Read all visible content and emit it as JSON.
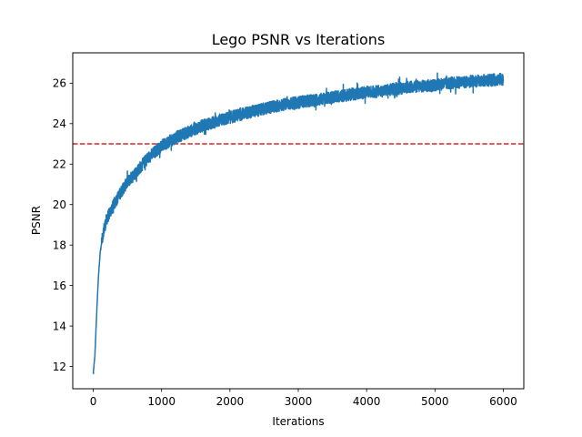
{
  "chart_data": {
    "type": "line",
    "title": "Lego PSNR vs Iterations",
    "xlabel": "Iterations",
    "ylabel": "PSNR",
    "xlim": [
      -300,
      6300
    ],
    "ylim": [
      10.9,
      27.5
    ],
    "xticks": [
      0,
      1000,
      2000,
      3000,
      4000,
      5000,
      6000
    ],
    "yticks": [
      12,
      14,
      16,
      18,
      20,
      22,
      24,
      26
    ],
    "grid": false,
    "legend": "none",
    "series": [
      {
        "color": "#1f77b4",
        "noise_amplitude": 0.3,
        "x": [
          0,
          25,
          50,
          75,
          100,
          150,
          200,
          300,
          400,
          500,
          600,
          700,
          800,
          900,
          1000,
          1200,
          1400,
          1600,
          1800,
          2000,
          2200,
          2400,
          2600,
          2800,
          3000,
          3200,
          3400,
          3600,
          3800,
          4000,
          4200,
          4400,
          4600,
          4800,
          5000,
          5200,
          5400,
          5600,
          5800,
          6000
        ],
        "y": [
          11.6,
          12.6,
          14.6,
          16.4,
          17.6,
          18.7,
          19.3,
          20.0,
          20.6,
          21.1,
          21.5,
          21.9,
          22.3,
          22.6,
          22.9,
          23.3,
          23.6,
          23.9,
          24.1,
          24.3,
          24.5,
          24.65,
          24.8,
          24.95,
          25.05,
          25.15,
          25.25,
          25.35,
          25.45,
          25.55,
          25.6,
          25.7,
          25.8,
          25.85,
          25.9,
          26.0,
          26.05,
          26.1,
          26.15,
          26.2
        ]
      }
    ],
    "reference_line": {
      "y": 23,
      "color": "#d62728",
      "style": "dashed"
    }
  }
}
